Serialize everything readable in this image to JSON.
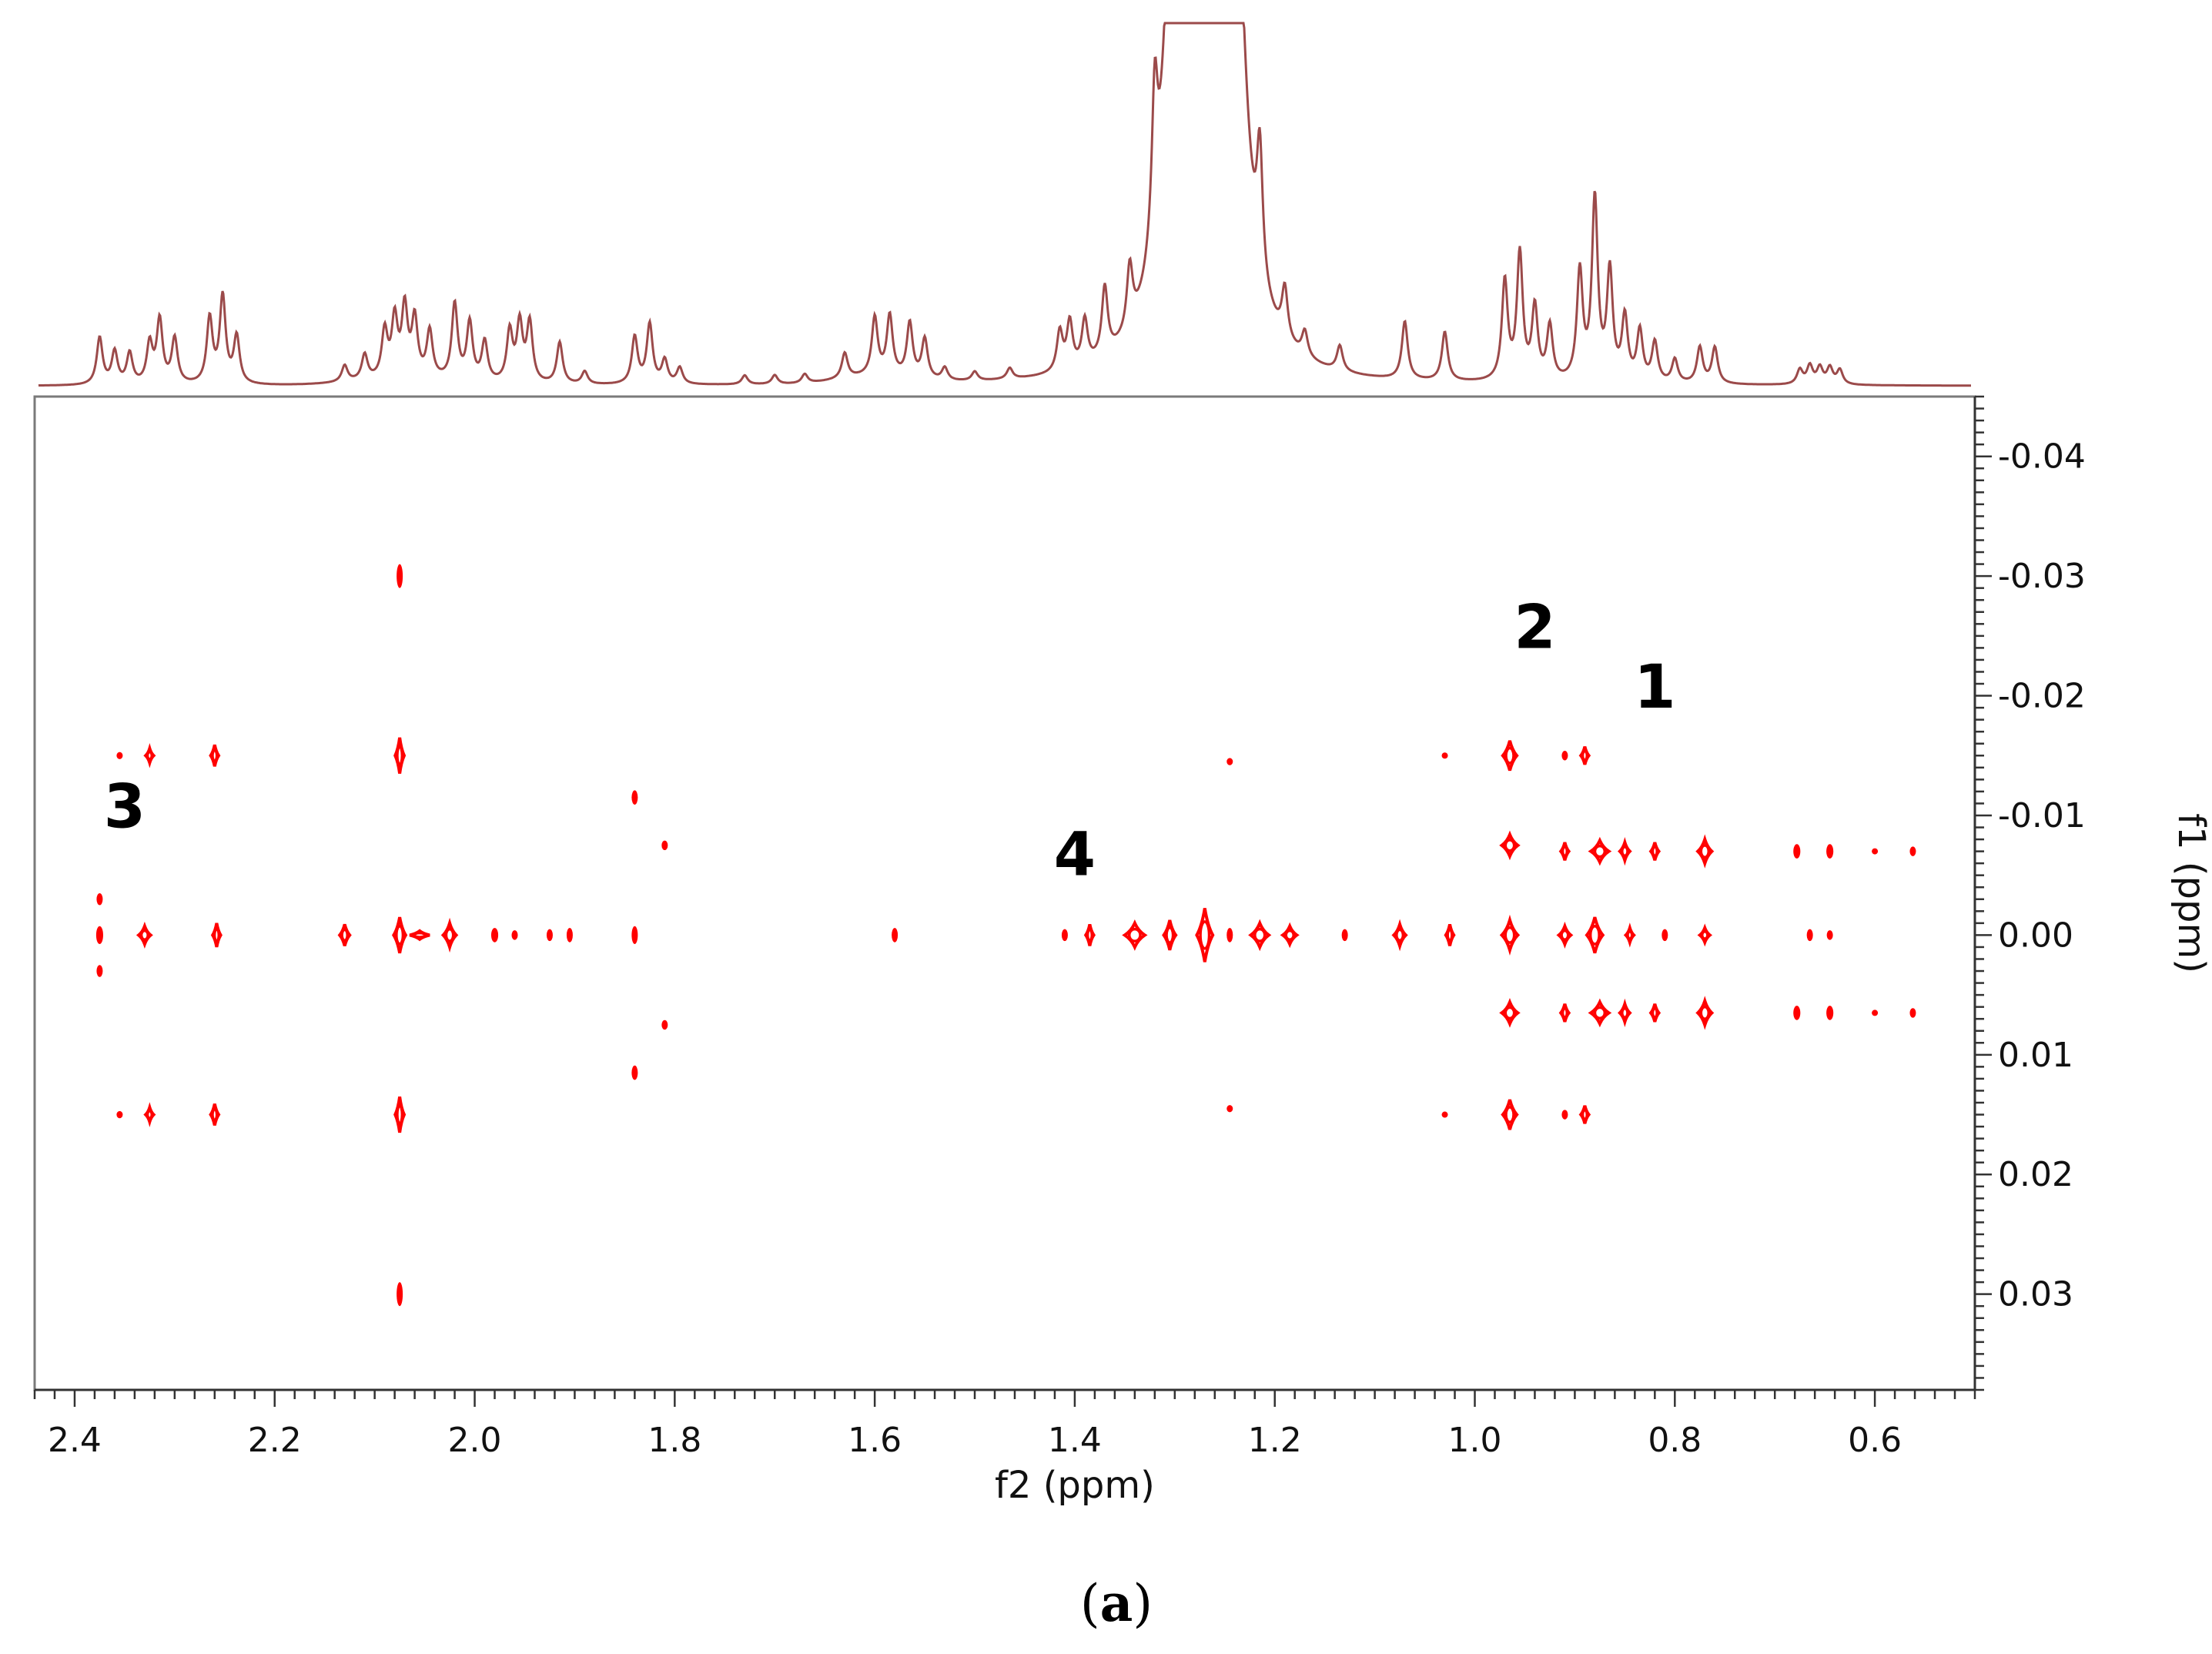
{
  "chart_data": {
    "type": "scatter",
    "subtype": "2D NMR contour plot with 1D projection",
    "xlabel": "f2 (ppm)",
    "ylabel": "f1 (ppm)",
    "xlim": [
      2.44,
      0.5
    ],
    "ylim": [
      0.038,
      -0.045
    ],
    "x_reversed": true,
    "y_reversed": true,
    "x_ticks": [
      "2.4",
      "2.2",
      "2.0",
      "1.8",
      "1.6",
      "1.4",
      "1.2",
      "1.0",
      "0.8",
      "0.6"
    ],
    "x_tick_values": [
      2.4,
      2.2,
      2.0,
      1.8,
      1.6,
      1.4,
      1.2,
      1.0,
      0.8,
      0.6
    ],
    "y_ticks": [
      "-0.04",
      "-0.03",
      "-0.02",
      "-0.01",
      "0.00",
      "0.01",
      "0.02",
      "0.03"
    ],
    "y_tick_values": [
      -0.04,
      -0.03,
      -0.02,
      -0.01,
      0.0,
      0.01,
      0.02,
      0.03
    ],
    "contour_color": "#ff0000",
    "spectrum_color": "#9b4a4a",
    "grid": false,
    "projection_peaks": [
      {
        "x": 2.375,
        "h": 0.26
      },
      {
        "x": 2.36,
        "h": 0.18
      },
      {
        "x": 2.345,
        "h": 0.17
      },
      {
        "x": 2.325,
        "h": 0.22
      },
      {
        "x": 2.315,
        "h": 0.35
      },
      {
        "x": 2.3,
        "h": 0.25
      },
      {
        "x": 2.265,
        "h": 0.36
      },
      {
        "x": 2.252,
        "h": 0.48
      },
      {
        "x": 2.238,
        "h": 0.26
      },
      {
        "x": 2.13,
        "h": 0.09
      },
      {
        "x": 2.11,
        "h": 0.14
      },
      {
        "x": 2.09,
        "h": 0.26
      },
      {
        "x": 2.08,
        "h": 0.32
      },
      {
        "x": 2.07,
        "h": 0.38
      },
      {
        "x": 2.06,
        "h": 0.32
      },
      {
        "x": 2.045,
        "h": 0.26
      },
      {
        "x": 2.02,
        "h": 0.42
      },
      {
        "x": 2.005,
        "h": 0.32
      },
      {
        "x": 1.99,
        "h": 0.22
      },
      {
        "x": 1.965,
        "h": 0.28
      },
      {
        "x": 1.955,
        "h": 0.32
      },
      {
        "x": 1.945,
        "h": 0.33
      },
      {
        "x": 1.915,
        "h": 0.23
      },
      {
        "x": 1.89,
        "h": 0.07
      },
      {
        "x": 1.84,
        "h": 0.26
      },
      {
        "x": 1.825,
        "h": 0.33
      },
      {
        "x": 1.81,
        "h": 0.13
      },
      {
        "x": 1.795,
        "h": 0.09
      },
      {
        "x": 1.73,
        "h": 0.05
      },
      {
        "x": 1.7,
        "h": 0.05
      },
      {
        "x": 1.67,
        "h": 0.05
      },
      {
        "x": 1.63,
        "h": 0.14
      },
      {
        "x": 1.6,
        "h": 0.32
      },
      {
        "x": 1.585,
        "h": 0.33
      },
      {
        "x": 1.565,
        "h": 0.3
      },
      {
        "x": 1.55,
        "h": 0.22
      },
      {
        "x": 1.53,
        "h": 0.07
      },
      {
        "x": 1.5,
        "h": 0.05
      },
      {
        "x": 1.465,
        "h": 0.06
      },
      {
        "x": 1.415,
        "h": 0.22
      },
      {
        "x": 1.405,
        "h": 0.26
      },
      {
        "x": 1.39,
        "h": 0.25
      },
      {
        "x": 1.37,
        "h": 0.38
      },
      {
        "x": 1.345,
        "h": 0.35
      },
      {
        "x": 1.32,
        "h": 0.8
      },
      {
        "x": 1.3,
        "h": 2.6
      },
      {
        "x": 1.27,
        "h": 4.0
      },
      {
        "x": 1.24,
        "h": 2.4
      },
      {
        "x": 1.215,
        "h": 0.7
      },
      {
        "x": 1.19,
        "h": 0.28
      },
      {
        "x": 1.17,
        "h": 0.14
      },
      {
        "x": 1.135,
        "h": 0.14
      },
      {
        "x": 1.07,
        "h": 0.32
      },
      {
        "x": 1.03,
        "h": 0.27
      },
      {
        "x": 0.97,
        "h": 0.55
      },
      {
        "x": 0.955,
        "h": 0.7
      },
      {
        "x": 0.94,
        "h": 0.4
      },
      {
        "x": 0.925,
        "h": 0.3
      },
      {
        "x": 0.895,
        "h": 0.6
      },
      {
        "x": 0.88,
        "h": 1.0
      },
      {
        "x": 0.865,
        "h": 0.6
      },
      {
        "x": 0.85,
        "h": 0.35
      },
      {
        "x": 0.835,
        "h": 0.28
      },
      {
        "x": 0.82,
        "h": 0.22
      },
      {
        "x": 0.8,
        "h": 0.13
      },
      {
        "x": 0.775,
        "h": 0.2
      },
      {
        "x": 0.76,
        "h": 0.2
      },
      {
        "x": 0.675,
        "h": 0.08
      },
      {
        "x": 0.665,
        "h": 0.1
      },
      {
        "x": 0.655,
        "h": 0.09
      },
      {
        "x": 0.645,
        "h": 0.09
      },
      {
        "x": 0.635,
        "h": 0.08
      }
    ],
    "contours": [
      {
        "x": 2.375,
        "y": -0.003,
        "w": 0.006,
        "h": 0.001
      },
      {
        "x": 2.375,
        "y": 0.0,
        "w": 0.007,
        "h": 0.0015
      },
      {
        "x": 2.375,
        "y": 0.003,
        "w": 0.006,
        "h": 0.001
      },
      {
        "x": 2.355,
        "y": -0.015,
        "w": 0.003,
        "h": 0.0006
      },
      {
        "x": 2.325,
        "y": -0.015,
        "w": 0.008,
        "h": 0.0012
      },
      {
        "x": 2.355,
        "y": 0.015,
        "w": 0.003,
        "h": 0.0006
      },
      {
        "x": 2.325,
        "y": 0.015,
        "w": 0.008,
        "h": 0.0012
      },
      {
        "x": 2.33,
        "y": 0.0,
        "w": 0.012,
        "h": 0.0015
      },
      {
        "x": 2.26,
        "y": -0.015,
        "w": 0.008,
        "h": 0.0018
      },
      {
        "x": 2.26,
        "y": 0.015,
        "w": 0.008,
        "h": 0.0018
      },
      {
        "x": 2.258,
        "y": 0.0,
        "w": 0.008,
        "h": 0.002
      },
      {
        "x": 2.13,
        "y": 0.0,
        "w": 0.01,
        "h": 0.0018
      },
      {
        "x": 2.075,
        "y": -0.03,
        "w": 0.006,
        "h": 0.002
      },
      {
        "x": 2.075,
        "y": -0.015,
        "w": 0.009,
        "h": 0.003
      },
      {
        "x": 2.075,
        "y": 0.0,
        "w": 0.012,
        "h": 0.003
      },
      {
        "x": 2.075,
        "y": 0.015,
        "w": 0.009,
        "h": 0.003
      },
      {
        "x": 2.075,
        "y": 0.03,
        "w": 0.006,
        "h": 0.002
      },
      {
        "x": 2.055,
        "y": 0.0,
        "w": 0.02,
        "h": 0.0007
      },
      {
        "x": 2.025,
        "y": 0.0,
        "w": 0.013,
        "h": 0.002
      },
      {
        "x": 1.98,
        "y": 0.0,
        "w": 0.007,
        "h": 0.0012
      },
      {
        "x": 1.96,
        "y": 0.0,
        "w": 0.003,
        "h": 0.0008
      },
      {
        "x": 1.925,
        "y": 0.0,
        "w": 0.006,
        "h": 0.001
      },
      {
        "x": 1.905,
        "y": 0.0,
        "w": 0.003,
        "h": 0.0012
      },
      {
        "x": 1.84,
        "y": -0.0115,
        "w": 0.006,
        "h": 0.0012
      },
      {
        "x": 1.84,
        "y": 0.0115,
        "w": 0.006,
        "h": 0.0012
      },
      {
        "x": 1.84,
        "y": 0.0,
        "w": 0.006,
        "h": 0.0015
      },
      {
        "x": 1.81,
        "y": -0.0075,
        "w": 0.002,
        "h": 0.0008
      },
      {
        "x": 1.81,
        "y": 0.0075,
        "w": 0.002,
        "h": 0.0008
      },
      {
        "x": 1.58,
        "y": 0.0,
        "w": 0.003,
        "h": 0.0012
      },
      {
        "x": 1.41,
        "y": 0.0,
        "w": 0.006,
        "h": 0.001
      },
      {
        "x": 1.385,
        "y": 0.0,
        "w": 0.008,
        "h": 0.0018
      },
      {
        "x": 1.34,
        "y": 0.0,
        "w": 0.02,
        "h": 0.002
      },
      {
        "x": 1.305,
        "y": 0.0,
        "w": 0.012,
        "h": 0.0025
      },
      {
        "x": 1.27,
        "y": 0.0,
        "w": 0.016,
        "h": 0.0045
      },
      {
        "x": 1.245,
        "y": -0.0145,
        "w": 0.003,
        "h": 0.0006
      },
      {
        "x": 1.245,
        "y": 0.0145,
        "w": 0.003,
        "h": 0.0006
      },
      {
        "x": 1.245,
        "y": 0.0,
        "w": 0.006,
        "h": 0.0012
      },
      {
        "x": 1.215,
        "y": 0.0,
        "w": 0.018,
        "h": 0.002
      },
      {
        "x": 1.185,
        "y": 0.0,
        "w": 0.014,
        "h": 0.0015
      },
      {
        "x": 1.13,
        "y": 0.0,
        "w": 0.005,
        "h": 0.001
      },
      {
        "x": 1.075,
        "y": 0.0,
        "w": 0.012,
        "h": 0.0018
      },
      {
        "x": 1.03,
        "y": -0.015,
        "w": 0.002,
        "h": 0.0005
      },
      {
        "x": 1.03,
        "y": 0.015,
        "w": 0.002,
        "h": 0.0005
      },
      {
        "x": 1.025,
        "y": 0.0,
        "w": 0.008,
        "h": 0.0018
      },
      {
        "x": 0.965,
        "y": -0.015,
        "w": 0.014,
        "h": 0.0025
      },
      {
        "x": 0.965,
        "y": 0.015,
        "w": 0.014,
        "h": 0.0025
      },
      {
        "x": 0.965,
        "y": -0.0075,
        "w": 0.016,
        "h": 0.0018
      },
      {
        "x": 0.965,
        "y": 0.0065,
        "w": 0.016,
        "h": 0.0018
      },
      {
        "x": 0.965,
        "y": 0.0,
        "w": 0.016,
        "h": 0.0025
      },
      {
        "x": 0.91,
        "y": -0.015,
        "w": 0.006,
        "h": 0.0008
      },
      {
        "x": 0.91,
        "y": 0.015,
        "w": 0.006,
        "h": 0.0008
      },
      {
        "x": 0.89,
        "y": -0.015,
        "w": 0.008,
        "h": 0.0015
      },
      {
        "x": 0.89,
        "y": 0.015,
        "w": 0.008,
        "h": 0.0015
      },
      {
        "x": 0.91,
        "y": -0.007,
        "w": 0.008,
        "h": 0.0015
      },
      {
        "x": 0.91,
        "y": 0.0065,
        "w": 0.008,
        "h": 0.0015
      },
      {
        "x": 0.91,
        "y": 0.0,
        "w": 0.012,
        "h": 0.0015
      },
      {
        "x": 0.875,
        "y": -0.007,
        "w": 0.018,
        "h": 0.0018
      },
      {
        "x": 0.875,
        "y": 0.0065,
        "w": 0.018,
        "h": 0.0018
      },
      {
        "x": 0.88,
        "y": 0.0,
        "w": 0.016,
        "h": 0.003
      },
      {
        "x": 0.85,
        "y": -0.007,
        "w": 0.01,
        "h": 0.0015
      },
      {
        "x": 0.85,
        "y": 0.0065,
        "w": 0.01,
        "h": 0.0015
      },
      {
        "x": 0.845,
        "y": 0.0,
        "w": 0.008,
        "h": 0.0012
      },
      {
        "x": 0.82,
        "y": -0.007,
        "w": 0.008,
        "h": 0.0015
      },
      {
        "x": 0.82,
        "y": 0.0065,
        "w": 0.008,
        "h": 0.0015
      },
      {
        "x": 0.81,
        "y": 0.0,
        "w": 0.006,
        "h": 0.001
      },
      {
        "x": 0.77,
        "y": -0.007,
        "w": 0.014,
        "h": 0.002
      },
      {
        "x": 0.77,
        "y": 0.0065,
        "w": 0.014,
        "h": 0.002
      },
      {
        "x": 0.77,
        "y": 0.0,
        "w": 0.01,
        "h": 0.0012
      },
      {
        "x": 0.678,
        "y": -0.007,
        "w": 0.007,
        "h": 0.0012
      },
      {
        "x": 0.678,
        "y": 0.0065,
        "w": 0.007,
        "h": 0.0012
      },
      {
        "x": 0.645,
        "y": -0.007,
        "w": 0.007,
        "h": 0.0012
      },
      {
        "x": 0.645,
        "y": 0.0065,
        "w": 0.007,
        "h": 0.0012
      },
      {
        "x": 0.665,
        "y": 0.0,
        "w": 0.006,
        "h": 0.001
      },
      {
        "x": 0.645,
        "y": 0.0,
        "w": 0.005,
        "h": 0.0008
      },
      {
        "x": 0.6,
        "y": -0.007,
        "w": 0.002,
        "h": 0.0004
      },
      {
        "x": 0.6,
        "y": 0.0065,
        "w": 0.002,
        "h": 0.0004
      },
      {
        "x": 0.562,
        "y": -0.007,
        "w": 0.004,
        "h": 0.0008
      },
      {
        "x": 0.562,
        "y": 0.0065,
        "w": 0.004,
        "h": 0.0008
      }
    ],
    "annotations": [
      {
        "text": "1",
        "x": 0.82,
        "y": -0.019
      },
      {
        "text": "2",
        "x": 0.94,
        "y": -0.024
      },
      {
        "text": "3",
        "x": 2.35,
        "y": -0.009
      },
      {
        "text": "4",
        "x": 1.4,
        "y": -0.005
      }
    ]
  },
  "caption": {
    "open": "(",
    "letter": "a",
    "close": ")"
  }
}
